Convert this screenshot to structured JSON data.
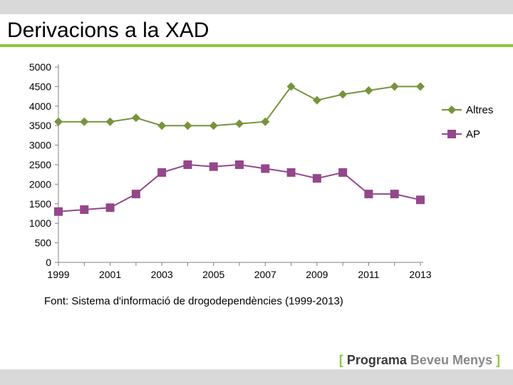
{
  "header": {
    "title": "Derivacions a la XAD",
    "underline_color": "#8cc63f",
    "band_color": "#d9d9d9"
  },
  "chart": {
    "type": "line",
    "background_color": "#ffffff",
    "axis_color": "#808080",
    "axis_line_width": 1,
    "tick_color": "#808080",
    "label_color": "#000000",
    "label_fontsize": 14,
    "marker_size": 6,
    "line_width": 2,
    "ylim": [
      0,
      5000
    ],
    "ytick_step": 500,
    "x_values": [
      1999,
      2000,
      2001,
      2002,
      2003,
      2004,
      2005,
      2006,
      2007,
      2008,
      2009,
      2010,
      2011,
      2012,
      2013
    ],
    "x_tick_labels_show_every": 2,
    "series": [
      {
        "name": "Altres",
        "color": "#77933c",
        "marker": "diamond",
        "values": [
          3600,
          3600,
          3600,
          3700,
          3500,
          3500,
          3500,
          3550,
          3600,
          4500,
          4150,
          4300,
          4400,
          4500,
          4500
        ]
      },
      {
        "name": "AP",
        "color": "#94478a",
        "marker": "square",
        "values": [
          1300,
          1350,
          1400,
          1750,
          2300,
          2500,
          2450,
          2500,
          2400,
          2300,
          2150,
          2300,
          1750,
          1750,
          1600
        ]
      }
    ],
    "legend": {
      "position": "right"
    }
  },
  "caption": "Font: Sistema d'informació de drogodependències (1999-2013)",
  "brand": {
    "left_bracket": "[",
    "word1": "Programa",
    "word2": "Beveu Menys",
    "right_bracket": "]",
    "bracket_color": "#8cc63f",
    "word1_color": "#3a3a3a",
    "word2_color": "#888888"
  }
}
